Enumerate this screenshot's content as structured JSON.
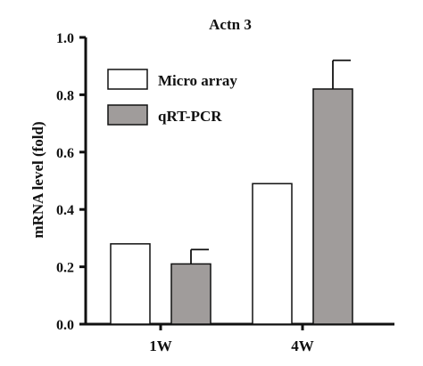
{
  "chart_data": {
    "type": "bar",
    "title": "Actn 3",
    "xlabel": "",
    "ylabel": "mRNA level (fold)",
    "ylim": [
      0,
      1.0
    ],
    "yticks": [
      "0.0",
      "0.2",
      "0.4",
      "0.6",
      "0.8",
      "1.0"
    ],
    "categories": [
      "1W",
      "4W"
    ],
    "series": [
      {
        "name": "Micro array",
        "color": "#ffffff",
        "values": [
          0.28,
          0.49
        ],
        "errors": [
          null,
          null
        ]
      },
      {
        "name": "qRT-PCR",
        "color": "#a09c9b",
        "values": [
          0.21,
          0.82
        ],
        "errors": [
          0.05,
          0.1
        ]
      }
    ],
    "legend_position": "top-left",
    "grid": false
  }
}
